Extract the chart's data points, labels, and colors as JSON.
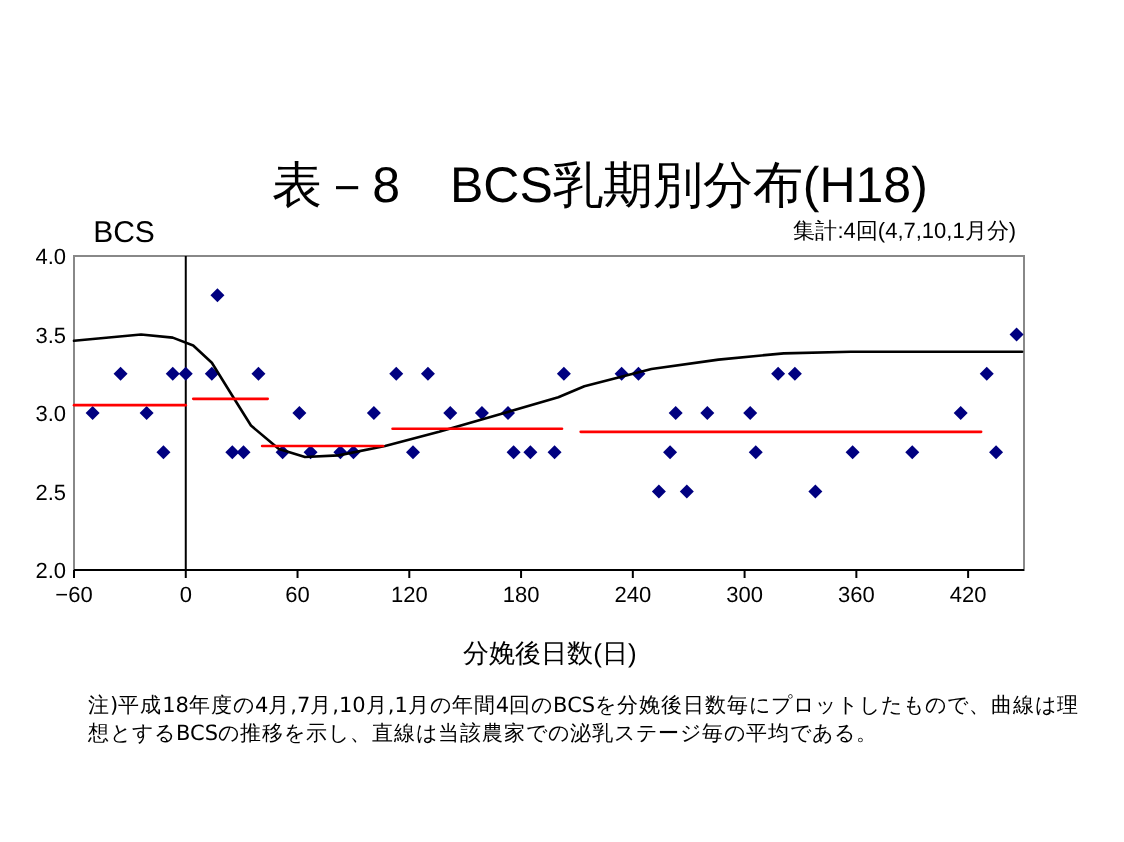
{
  "chart_data": {
    "type": "scatter",
    "title": "表－8　BCS乳期別分布(H18)",
    "xlabel": "分娩後日数(日)",
    "ylabel": "BCS",
    "annotations": [
      "集計:4回(4,7,10,1月分)",
      "注)平成18年度の4月,7月,10月,1月の年間4回のBCSを分娩後日数毎にプロットしたもので、曲線は理想とするBCSの推移を示し、直線は当該農家での泌乳ステージ毎の平均である。"
    ],
    "xlim": [
      -60,
      450
    ],
    "xticks": [
      -60,
      0,
      60,
      120,
      180,
      240,
      300,
      360,
      420
    ],
    "ylim": [
      2.0,
      4.0
    ],
    "yticks": [
      {
        "value": 2.0,
        "label": "2.0"
      },
      {
        "value": 2.5,
        "label": "2.5"
      },
      {
        "value": 3.0,
        "label": "3.0"
      },
      {
        "value": 3.5,
        "label": "3.5"
      },
      {
        "value": 4.0,
        "label": "4.0"
      }
    ],
    "grid": false,
    "series": [
      {
        "marker": "diamond",
        "color": "#000080",
        "x": [
          -50,
          -35,
          -21,
          -12,
          -7,
          0,
          14,
          17,
          25,
          31,
          39,
          52,
          61,
          67,
          83,
          90,
          101,
          113,
          122,
          130,
          142,
          159,
          173,
          176,
          185,
          198,
          203,
          234,
          243,
          254,
          260,
          263,
          269,
          280,
          303,
          306,
          318,
          327,
          338,
          358,
          390,
          416,
          430,
          435,
          446
        ],
        "values": [
          3.0,
          3.25,
          3.0,
          2.75,
          3.25,
          3.25,
          3.25,
          3.75,
          2.75,
          2.75,
          3.25,
          2.75,
          3.0,
          2.75,
          2.75,
          2.75,
          3.0,
          3.25,
          2.75,
          3.25,
          3.0,
          3.0,
          3.0,
          2.75,
          2.75,
          2.75,
          3.25,
          3.25,
          3.25,
          2.5,
          2.75,
          3.0,
          2.5,
          3.0,
          3.0,
          2.75,
          3.25,
          3.25,
          2.5,
          2.75,
          2.75,
          3.0,
          3.25,
          2.75,
          3.5
        ]
      },
      {
        "type": "line",
        "marker": "none",
        "color": "#000000",
        "x": [
          -60,
          -24,
          -7,
          4,
          14,
          25,
          35,
          50,
          64,
          82,
          107,
          136,
          171,
          200,
          214,
          250,
          286,
          321,
          357,
          449
        ],
        "values": [
          3.46,
          3.5,
          3.48,
          3.43,
          3.32,
          3.11,
          2.92,
          2.77,
          2.72,
          2.73,
          2.79,
          2.88,
          3.0,
          3.1,
          3.17,
          3.28,
          3.34,
          3.38,
          3.39,
          3.39
        ]
      },
      {
        "type": "line",
        "marker": "none",
        "color": "#ff0000",
        "x": [
          -60,
          0
        ],
        "values": [
          3.05,
          3.05
        ]
      },
      {
        "type": "line",
        "marker": "none",
        "color": "#ff0000",
        "x": [
          4,
          44
        ],
        "values": [
          3.09,
          3.09
        ]
      },
      {
        "type": "line",
        "marker": "none",
        "color": "#ff0000",
        "x": [
          41,
          106
        ],
        "values": [
          2.79,
          2.79
        ]
      },
      {
        "type": "line",
        "marker": "none",
        "color": "#ff0000",
        "x": [
          111,
          202
        ],
        "values": [
          2.9,
          2.9
        ]
      },
      {
        "type": "line",
        "marker": "none",
        "color": "#ff0000",
        "x": [
          212,
          427
        ],
        "values": [
          2.88,
          2.88
        ]
      }
    ]
  }
}
